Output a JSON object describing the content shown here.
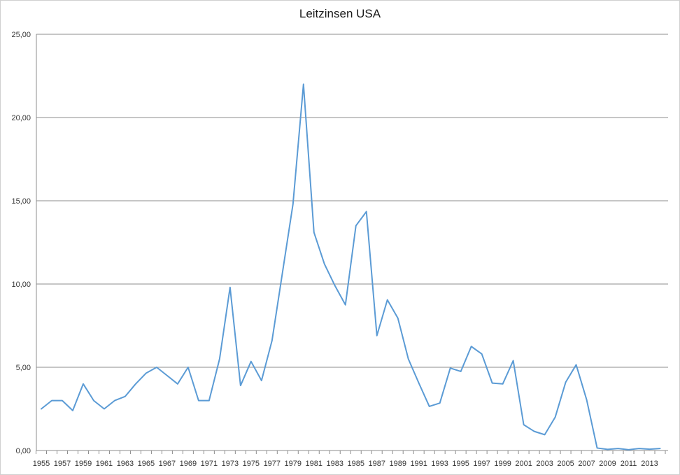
{
  "chart_data": {
    "type": "line",
    "title": "Leitzinsen USA",
    "xlabel": "",
    "ylabel": "",
    "ylim": [
      0,
      25
    ],
    "yticks": [
      "0,00",
      "5,00",
      "10,00",
      "15,00",
      "20,00",
      "25,00"
    ],
    "grid": "horizontal",
    "legend": "none",
    "line_color": "#5b9bd5",
    "x": [
      1955,
      1956,
      1957,
      1958,
      1959,
      1960,
      1961,
      1962,
      1963,
      1964,
      1965,
      1966,
      1967,
      1968,
      1969,
      1970,
      1971,
      1972,
      1973,
      1974,
      1975,
      1976,
      1977,
      1978,
      1979,
      1980,
      1981,
      1982,
      1983,
      1984,
      1985,
      1986,
      1987,
      1988,
      1989,
      1990,
      1991,
      1992,
      1993,
      1994,
      1995,
      1996,
      1997,
      1998,
      1999,
      2000,
      2001,
      2002,
      2003,
      2004,
      2005,
      2006,
      2007,
      2008,
      2009,
      2010,
      2011,
      2012,
      2013,
      2014
    ],
    "xtick_labels": [
      "1955",
      "1957",
      "1959",
      "1961",
      "1963",
      "1965",
      "1967",
      "1969",
      "1971",
      "1973",
      "1975",
      "1977",
      "1979",
      "1981",
      "1983",
      "1985",
      "1987",
      "1989",
      "1991",
      "1993",
      "1995",
      "1997",
      "1999",
      "2001",
      "2003",
      "2005",
      "2007",
      "2009",
      "2011",
      "2013"
    ],
    "series": [
      {
        "values": [
          2.5,
          3.0,
          3.0,
          2.4,
          4.0,
          3.0,
          2.5,
          3.0,
          3.25,
          4.0,
          4.65,
          5.0,
          4.5,
          4.0,
          5.0,
          3.0,
          3.0,
          5.5,
          9.8,
          3.9,
          5.35,
          4.2,
          6.6,
          10.7,
          14.8,
          22.0,
          13.1,
          11.2,
          9.9,
          8.75,
          13.5,
          14.35,
          6.9,
          9.05,
          7.95,
          5.5,
          4.05,
          2.65,
          2.85,
          4.95,
          4.75,
          6.25,
          5.8,
          4.05,
          4.0,
          5.4,
          1.55,
          1.15,
          0.95,
          2.0,
          4.1,
          5.15,
          3.05,
          0.15,
          0.07,
          0.12,
          0.05,
          0.12,
          0.08,
          0.12
        ]
      }
    ]
  }
}
